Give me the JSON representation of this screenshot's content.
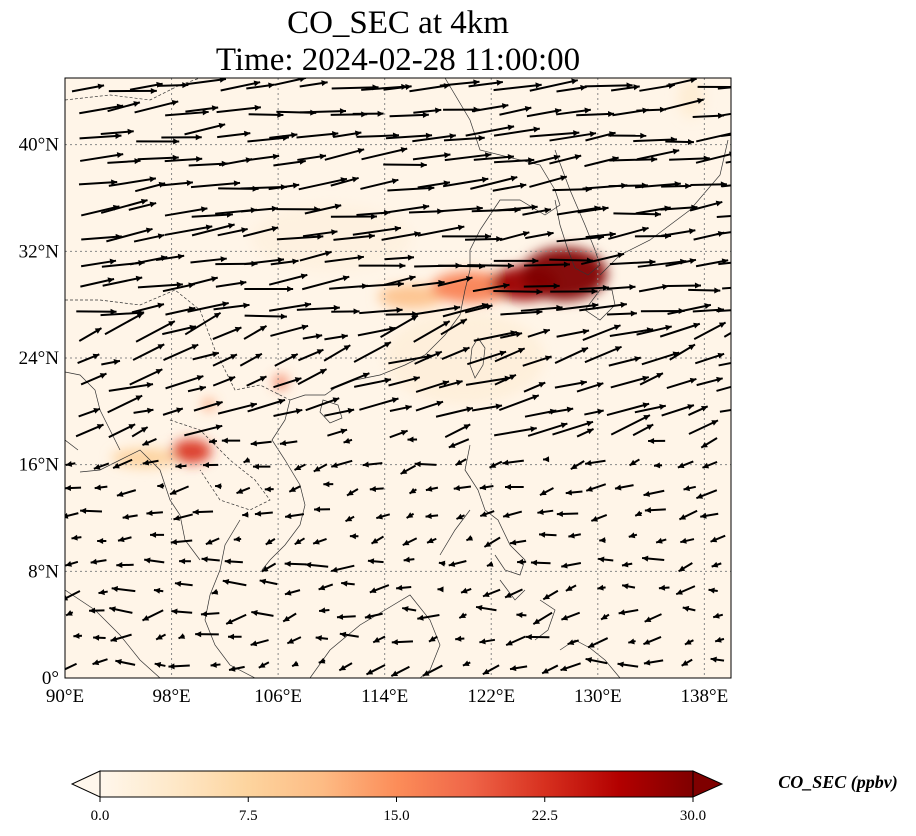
{
  "title_line1": "CO_SEC at 4km",
  "title_line2": "Time: 2024-02-28 11:00:00",
  "colorbar": {
    "label": "CO_SEC (ppbv)",
    "ticks": [
      "0.0",
      "7.5",
      "15.0",
      "22.5",
      "30.0"
    ],
    "min": 0,
    "max": 30,
    "colormap": [
      "#fff7ec",
      "#fee8c8",
      "#fdd49e",
      "#fdbb84",
      "#fc8d59",
      "#ef6548",
      "#d7301f",
      "#b30000",
      "#7f0000"
    ]
  },
  "map": {
    "lon_range": [
      90,
      140
    ],
    "lat_range": [
      0,
      45
    ],
    "lon_ticks": [
      "90°E",
      "98°E",
      "106°E",
      "114°E",
      "122°E",
      "130°E",
      "138°E"
    ],
    "lat_ticks": [
      "0°",
      "8°N",
      "16°N",
      "24°N",
      "32°N",
      "40°N"
    ],
    "lon_tick_values": [
      90,
      98,
      106,
      114,
      122,
      130,
      138
    ],
    "lat_tick_values": [
      0,
      8,
      16,
      24,
      32,
      40
    ],
    "background_color": "#fff5e8",
    "plumes": [
      {
        "lon": 127.5,
        "lat": 30.3,
        "value": 30,
        "spread_lon": 3.2,
        "spread_lat": 2.0
      },
      {
        "lon": 124.5,
        "lat": 29.6,
        "value": 28,
        "spread_lon": 2.5,
        "spread_lat": 1.3
      },
      {
        "lon": 120.5,
        "lat": 29.3,
        "value": 16,
        "spread_lon": 3.0,
        "spread_lat": 1.2
      },
      {
        "lon": 116.0,
        "lat": 28.6,
        "value": 10,
        "spread_lon": 2.5,
        "spread_lat": 0.9
      },
      {
        "lon": 106.2,
        "lat": 22.2,
        "value": 18,
        "spread_lon": 0.5,
        "spread_lat": 0.5
      },
      {
        "lon": 100.8,
        "lat": 20.5,
        "value": 15,
        "spread_lon": 0.4,
        "spread_lat": 0.4
      },
      {
        "lon": 99.5,
        "lat": 17.0,
        "value": 22,
        "spread_lon": 1.5,
        "spread_lat": 0.9
      },
      {
        "lon": 96.0,
        "lat": 16.5,
        "value": 8,
        "spread_lon": 2.5,
        "spread_lat": 0.7
      },
      {
        "lon": 120.0,
        "lat": 24.0,
        "value": 3,
        "spread_lon": 6.0,
        "spread_lat": 3.5
      },
      {
        "lon": 110.0,
        "lat": 33.0,
        "value": 2,
        "spread_lon": 6.0,
        "spread_lat": 2.5
      },
      {
        "lon": 137.0,
        "lat": 43.5,
        "value": 4,
        "spread_lon": 1.0,
        "spread_lat": 1.5
      }
    ]
  }
}
